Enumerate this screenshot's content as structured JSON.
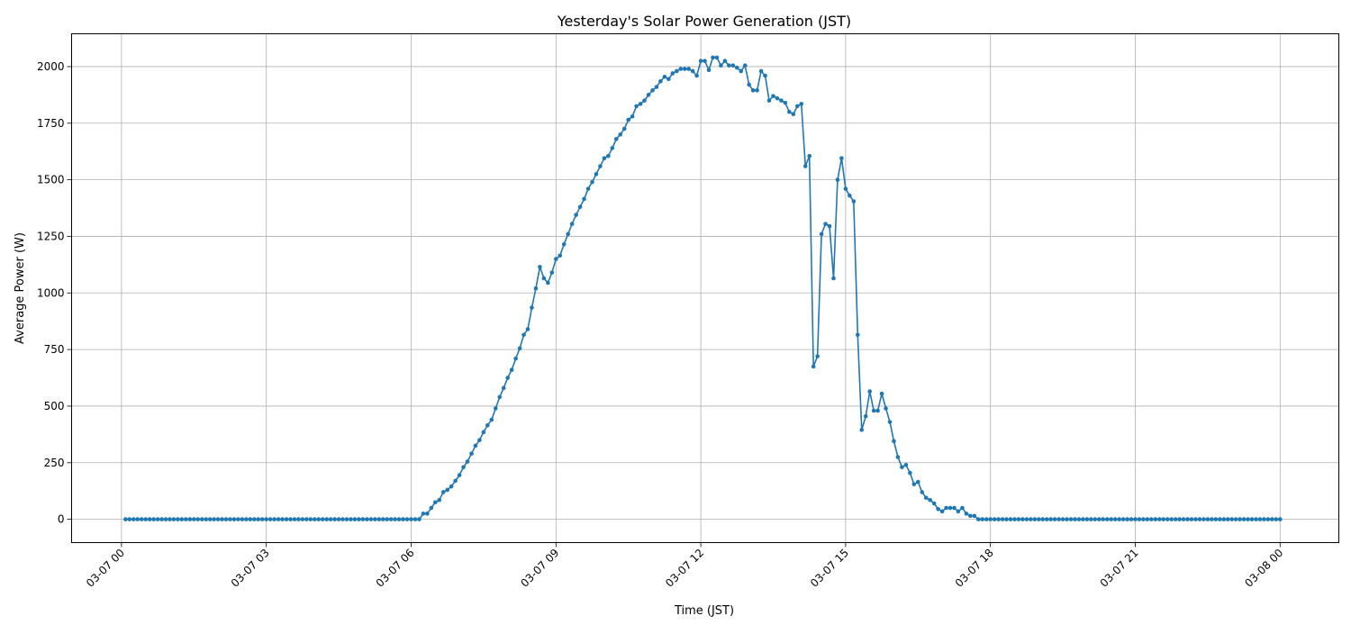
{
  "chart_data": {
    "type": "line",
    "title": "Yesterday's Solar Power Generation (JST)",
    "xlabel": "Time (JST)",
    "ylabel": "Average Power (W)",
    "ylim": [
      -103,
      2145
    ],
    "xlim": [
      "03-06 22:58",
      "03-08 01:13"
    ],
    "grid": true,
    "color": "#1f77b4",
    "marker": "circle",
    "x_ticks": [
      "03-07 00",
      "03-07 03",
      "03-07 06",
      "03-07 09",
      "03-07 12",
      "03-07 15",
      "03-07 18",
      "03-07 21",
      "03-08 00"
    ],
    "y_ticks": [
      0,
      250,
      500,
      750,
      1000,
      1250,
      1500,
      1750,
      2000
    ],
    "x": [
      "03-07 00:05",
      "03-07 00:10",
      "03-07 00:15",
      "03-07 00:20",
      "03-07 00:25",
      "03-07 00:30",
      "03-07 00:35",
      "03-07 00:40",
      "03-07 00:45",
      "03-07 00:50",
      "03-07 00:55",
      "03-07 01:00",
      "03-07 01:05",
      "03-07 01:10",
      "03-07 01:15",
      "03-07 01:20",
      "03-07 01:25",
      "03-07 01:30",
      "03-07 01:35",
      "03-07 01:40",
      "03-07 01:45",
      "03-07 01:50",
      "03-07 01:55",
      "03-07 02:00",
      "03-07 02:05",
      "03-07 02:10",
      "03-07 02:15",
      "03-07 02:20",
      "03-07 02:25",
      "03-07 02:30",
      "03-07 02:35",
      "03-07 02:40",
      "03-07 02:45",
      "03-07 02:50",
      "03-07 02:55",
      "03-07 03:00",
      "03-07 03:05",
      "03-07 03:10",
      "03-07 03:15",
      "03-07 03:20",
      "03-07 03:25",
      "03-07 03:30",
      "03-07 03:35",
      "03-07 03:40",
      "03-07 03:45",
      "03-07 03:50",
      "03-07 03:55",
      "03-07 04:00",
      "03-07 04:05",
      "03-07 04:10",
      "03-07 04:15",
      "03-07 04:20",
      "03-07 04:25",
      "03-07 04:30",
      "03-07 04:35",
      "03-07 04:40",
      "03-07 04:45",
      "03-07 04:50",
      "03-07 04:55",
      "03-07 05:00",
      "03-07 05:05",
      "03-07 05:10",
      "03-07 05:15",
      "03-07 05:20",
      "03-07 05:25",
      "03-07 05:30",
      "03-07 05:35",
      "03-07 05:40",
      "03-07 05:45",
      "03-07 05:50",
      "03-07 05:55",
      "03-07 06:00",
      "03-07 06:05",
      "03-07 06:10",
      "03-07 06:15",
      "03-07 06:20",
      "03-07 06:25",
      "03-07 06:30",
      "03-07 06:35",
      "03-07 06:40",
      "03-07 06:45",
      "03-07 06:50",
      "03-07 06:55",
      "03-07 07:00",
      "03-07 07:05",
      "03-07 07:10",
      "03-07 07:15",
      "03-07 07:20",
      "03-07 07:25",
      "03-07 07:30",
      "03-07 07:35",
      "03-07 07:40",
      "03-07 07:45",
      "03-07 07:50",
      "03-07 07:55",
      "03-07 08:00",
      "03-07 08:05",
      "03-07 08:10",
      "03-07 08:15",
      "03-07 08:20",
      "03-07 08:25",
      "03-07 08:30",
      "03-07 08:35",
      "03-07 08:40",
      "03-07 08:45",
      "03-07 08:50",
      "03-07 08:55",
      "03-07 09:00",
      "03-07 09:05",
      "03-07 09:10",
      "03-07 09:15",
      "03-07 09:20",
      "03-07 09:25",
      "03-07 09:30",
      "03-07 09:35",
      "03-07 09:40",
      "03-07 09:45",
      "03-07 09:50",
      "03-07 09:55",
      "03-07 10:00",
      "03-07 10:05",
      "03-07 10:10",
      "03-07 10:15",
      "03-07 10:20",
      "03-07 10:25",
      "03-07 10:30",
      "03-07 10:35",
      "03-07 10:40",
      "03-07 10:45",
      "03-07 10:50",
      "03-07 10:55",
      "03-07 11:00",
      "03-07 11:05",
      "03-07 11:10",
      "03-07 11:15",
      "03-07 11:20",
      "03-07 11:25",
      "03-07 11:30",
      "03-07 11:35",
      "03-07 11:40",
      "03-07 11:45",
      "03-07 11:50",
      "03-07 11:55",
      "03-07 12:00",
      "03-07 12:05",
      "03-07 12:10",
      "03-07 12:15",
      "03-07 12:20",
      "03-07 12:25",
      "03-07 12:30",
      "03-07 12:35",
      "03-07 12:40",
      "03-07 12:45",
      "03-07 12:50",
      "03-07 12:55",
      "03-07 13:00",
      "03-07 13:05",
      "03-07 13:10",
      "03-07 13:15",
      "03-07 13:20",
      "03-07 13:25",
      "03-07 13:30",
      "03-07 13:35",
      "03-07 13:40",
      "03-07 13:45",
      "03-07 13:50",
      "03-07 13:55",
      "03-07 14:00",
      "03-07 14:05",
      "03-07 14:10",
      "03-07 14:15",
      "03-07 14:20",
      "03-07 14:25",
      "03-07 14:30",
      "03-07 14:35",
      "03-07 14:40",
      "03-07 14:45",
      "03-07 14:50",
      "03-07 14:55",
      "03-07 15:00",
      "03-07 15:05",
      "03-07 15:10",
      "03-07 15:15",
      "03-07 15:20",
      "03-07 15:25",
      "03-07 15:30",
      "03-07 15:35",
      "03-07 15:40",
      "03-07 15:45",
      "03-07 15:50",
      "03-07 15:55",
      "03-07 16:00",
      "03-07 16:05",
      "03-07 16:10",
      "03-07 16:15",
      "03-07 16:20",
      "03-07 16:25",
      "03-07 16:30",
      "03-07 16:35",
      "03-07 16:40",
      "03-07 16:45",
      "03-07 16:50",
      "03-07 16:55",
      "03-07 17:00",
      "03-07 17:05",
      "03-07 17:10",
      "03-07 17:15",
      "03-07 17:20",
      "03-07 17:25",
      "03-07 17:30",
      "03-07 17:35",
      "03-07 17:40",
      "03-07 17:45",
      "03-07 17:50",
      "03-07 17:55",
      "03-07 18:00",
      "03-07 18:05",
      "03-07 18:10",
      "03-07 18:15",
      "03-07 18:20",
      "03-07 18:25",
      "03-07 18:30",
      "03-07 18:35",
      "03-07 18:40",
      "03-07 18:45",
      "03-07 18:50",
      "03-07 18:55",
      "03-07 19:00",
      "03-07 19:05",
      "03-07 19:10",
      "03-07 19:15",
      "03-07 19:20",
      "03-07 19:25",
      "03-07 19:30",
      "03-07 19:35",
      "03-07 19:40",
      "03-07 19:45",
      "03-07 19:50",
      "03-07 19:55",
      "03-07 20:00",
      "03-07 20:05",
      "03-07 20:10",
      "03-07 20:15",
      "03-07 20:20",
      "03-07 20:25",
      "03-07 20:30",
      "03-07 20:35",
      "03-07 20:40",
      "03-07 20:45",
      "03-07 20:50",
      "03-07 20:55",
      "03-07 21:00",
      "03-07 21:05",
      "03-07 21:10",
      "03-07 21:15",
      "03-07 21:20",
      "03-07 21:25",
      "03-07 21:30",
      "03-07 21:35",
      "03-07 21:40",
      "03-07 21:45",
      "03-07 21:50",
      "03-07 21:55",
      "03-07 22:00",
      "03-07 22:05",
      "03-07 22:10",
      "03-07 22:15",
      "03-07 22:20",
      "03-07 22:25",
      "03-07 22:30",
      "03-07 22:35",
      "03-07 22:40",
      "03-07 22:45",
      "03-07 22:50",
      "03-07 22:55",
      "03-07 23:00",
      "03-07 23:05",
      "03-07 23:10",
      "03-07 23:15",
      "03-07 23:20",
      "03-07 23:25",
      "03-07 23:30",
      "03-07 23:35",
      "03-07 23:40",
      "03-07 23:45",
      "03-07 23:50",
      "03-07 23:55",
      "03-08 00:00"
    ],
    "values": [
      0,
      0,
      0,
      0,
      0,
      0,
      0,
      0,
      0,
      0,
      0,
      0,
      0,
      0,
      0,
      0,
      0,
      0,
      0,
      0,
      0,
      0,
      0,
      0,
      0,
      0,
      0,
      0,
      0,
      0,
      0,
      0,
      0,
      0,
      0,
      0,
      0,
      0,
      0,
      0,
      0,
      0,
      0,
      0,
      0,
      0,
      0,
      0,
      0,
      0,
      0,
      0,
      0,
      0,
      0,
      0,
      0,
      0,
      0,
      0,
      0,
      0,
      0,
      0,
      0,
      0,
      0,
      0,
      0,
      0,
      0,
      0,
      0,
      0,
      25,
      25,
      50,
      75,
      85,
      120,
      130,
      145,
      170,
      195,
      230,
      255,
      290,
      325,
      350,
      385,
      415,
      440,
      490,
      540,
      580,
      625,
      660,
      710,
      755,
      815,
      840,
      935,
      1020,
      1115,
      1065,
      1045,
      1090,
      1150,
      1165,
      1215,
      1260,
      1305,
      1345,
      1380,
      1415,
      1460,
      1490,
      1525,
      1560,
      1595,
      1605,
      1640,
      1680,
      1700,
      1725,
      1765,
      1780,
      1825,
      1835,
      1850,
      1875,
      1895,
      1910,
      1935,
      1955,
      1945,
      1970,
      1980,
      1990,
      1990,
      1990,
      1980,
      1960,
      2025,
      2025,
      1985,
      2040,
      2040,
      2005,
      2025,
      2005,
      2005,
      1995,
      1980,
      2005,
      1920,
      1895,
      1895,
      1980,
      1960,
      1850,
      1870,
      1860,
      1850,
      1840,
      1800,
      1790,
      1825,
      1835,
      1560,
      1605,
      675,
      720,
      1260,
      1305,
      1295,
      1065,
      1500,
      1595,
      1460,
      1430,
      1405,
      815,
      395,
      455,
      565,
      480,
      480,
      555,
      490,
      430,
      345,
      275,
      230,
      240,
      205,
      155,
      165,
      120,
      95,
      85,
      70,
      45,
      35,
      50,
      50,
      50,
      35,
      50,
      25,
      15,
      15,
      0,
      0,
      0,
      0,
      0,
      0,
      0,
      0,
      0,
      0,
      0,
      0,
      0,
      0,
      0,
      0,
      0,
      0,
      0,
      0,
      0,
      0,
      0,
      0,
      0,
      0,
      0,
      0,
      0,
      0,
      0,
      0,
      0,
      0,
      0,
      0,
      0,
      0,
      0,
      0,
      0,
      0,
      0,
      0,
      0,
      0,
      0,
      0,
      0,
      0,
      0,
      0,
      0,
      0,
      0,
      0,
      0,
      0,
      0,
      0,
      0,
      0,
      0,
      0,
      0,
      0,
      0,
      0,
      0,
      0,
      0,
      0,
      0,
      0,
      0,
      0
    ]
  }
}
